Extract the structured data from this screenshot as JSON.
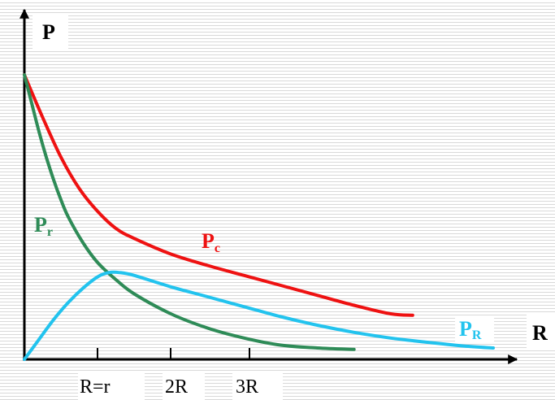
{
  "chart_data": {
    "type": "line",
    "xlabel": "R",
    "ylabel": "P",
    "x_ticks": [
      "R=r",
      "2R",
      "3R"
    ],
    "xlim": [
      0,
      6.5
    ],
    "ylim": [
      0,
      1.0
    ],
    "grid": false,
    "series": [
      {
        "name": "Pc",
        "label_main": "P",
        "label_sub": "c",
        "color": "#ee1111",
        "x": [
          0,
          0.25,
          0.5,
          0.75,
          1.0,
          1.25,
          1.5,
          2.0,
          2.5,
          3.0,
          3.5,
          4.0,
          4.5,
          5.0,
          5.3
        ],
        "y": [
          1.0,
          0.85,
          0.71,
          0.6,
          0.52,
          0.46,
          0.425,
          0.37,
          0.33,
          0.295,
          0.26,
          0.225,
          0.19,
          0.16,
          0.155
        ]
      },
      {
        "name": "Pr",
        "label_main": "P",
        "label_sub": "r",
        "color": "#2e8b57",
        "x": [
          0,
          0.1,
          0.2,
          0.3,
          0.4,
          0.5,
          0.6,
          0.8,
          1.0,
          1.25,
          1.5,
          2.0,
          2.5,
          3.0,
          3.5,
          4.0,
          4.5
        ],
        "y": [
          1.0,
          0.9,
          0.8,
          0.71,
          0.63,
          0.56,
          0.5,
          0.41,
          0.34,
          0.28,
          0.23,
          0.16,
          0.11,
          0.075,
          0.05,
          0.04,
          0.035
        ]
      },
      {
        "name": "PR",
        "label_main": "P",
        "label_sub": "R",
        "color": "#22c3ee",
        "x": [
          0,
          0.2,
          0.4,
          0.6,
          0.8,
          1.0,
          1.15,
          1.3,
          1.5,
          2.0,
          2.5,
          3.0,
          3.5,
          4.0,
          4.5,
          5.0,
          5.5,
          6.0,
          6.4
        ],
        "y": [
          0,
          0.07,
          0.14,
          0.2,
          0.25,
          0.29,
          0.305,
          0.305,
          0.295,
          0.255,
          0.22,
          0.185,
          0.15,
          0.12,
          0.095,
          0.075,
          0.06,
          0.047,
          0.04
        ]
      }
    ]
  }
}
